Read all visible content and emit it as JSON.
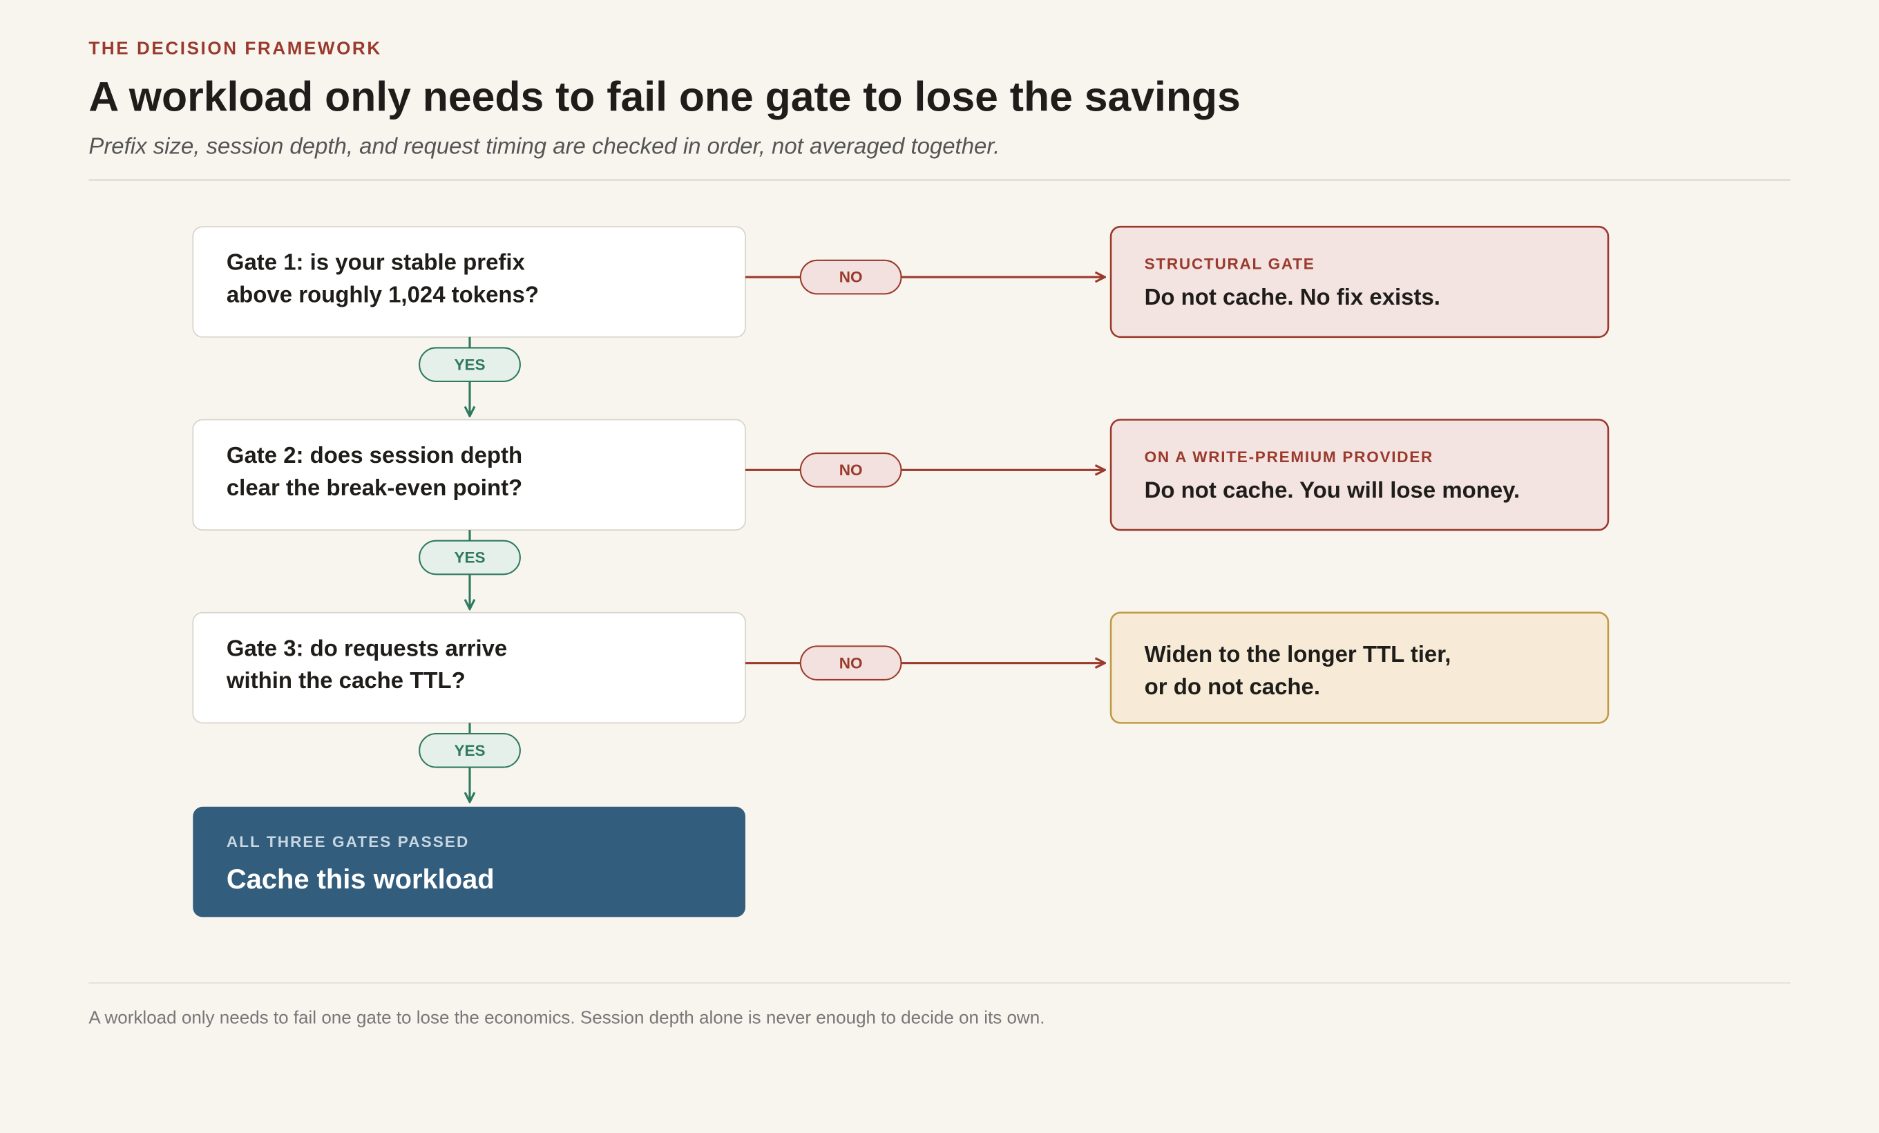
{
  "header": {
    "eyebrow": "THE DECISION FRAMEWORK",
    "title": "A workload only needs to fail one gate to lose the savings",
    "subtitle": "Prefix size, session depth, and request timing are checked in order, not averaged together."
  },
  "branches": {
    "yes": "YES",
    "no": "NO"
  },
  "gates": [
    {
      "lines": [
        "Gate 1: is your stable prefix",
        "above roughly 1,024 tokens?"
      ]
    },
    {
      "lines": [
        "Gate 2: does session depth",
        "clear the break-even point?"
      ]
    },
    {
      "lines": [
        "Gate 3: do requests arrive",
        "within the cache TTL?"
      ]
    }
  ],
  "outcomes": [
    {
      "kicker": "STRUCTURAL GATE",
      "lines": [
        "Do not cache. No fix exists."
      ]
    },
    {
      "kicker": "ON A WRITE-PREMIUM PROVIDER",
      "lines": [
        "Do not cache. You will lose money."
      ]
    },
    {
      "lines": [
        "Widen to the longer TTL tier,",
        "or do not cache."
      ]
    }
  ],
  "final": {
    "kicker": "ALL THREE GATES PASSED",
    "title": "Cache this workload"
  },
  "footer": "A workload only needs to fail one gate to lose the economics. Session depth alone is never enough to decide on its own."
}
